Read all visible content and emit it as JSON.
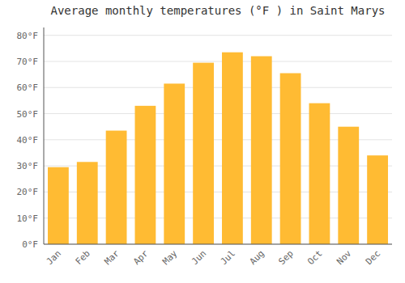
{
  "chart_data": {
    "type": "bar",
    "title": "Average monthly temperatures (°F ) in Saint Marys",
    "categories": [
      "Jan",
      "Feb",
      "Mar",
      "Apr",
      "May",
      "Jun",
      "Jul",
      "Aug",
      "Sep",
      "Oct",
      "Nov",
      "Dec"
    ],
    "values": [
      29.5,
      31.5,
      43.5,
      53.0,
      61.5,
      69.5,
      73.5,
      72.0,
      65.5,
      54.0,
      45.0,
      34.0
    ],
    "color": "#FFBB33",
    "ylim": [
      0,
      83
    ],
    "yticks": [
      {
        "value": 0,
        "label": "0°F"
      },
      {
        "value": 10,
        "label": "10°F"
      },
      {
        "value": 20,
        "label": "20°F"
      },
      {
        "value": 30,
        "label": "30°F"
      },
      {
        "value": 40,
        "label": "40°F"
      },
      {
        "value": 50,
        "label": "50°F"
      },
      {
        "value": 60,
        "label": "60°F"
      },
      {
        "value": 70,
        "label": "70°F"
      },
      {
        "value": 80,
        "label": "80°F"
      }
    ],
    "grid": true
  }
}
